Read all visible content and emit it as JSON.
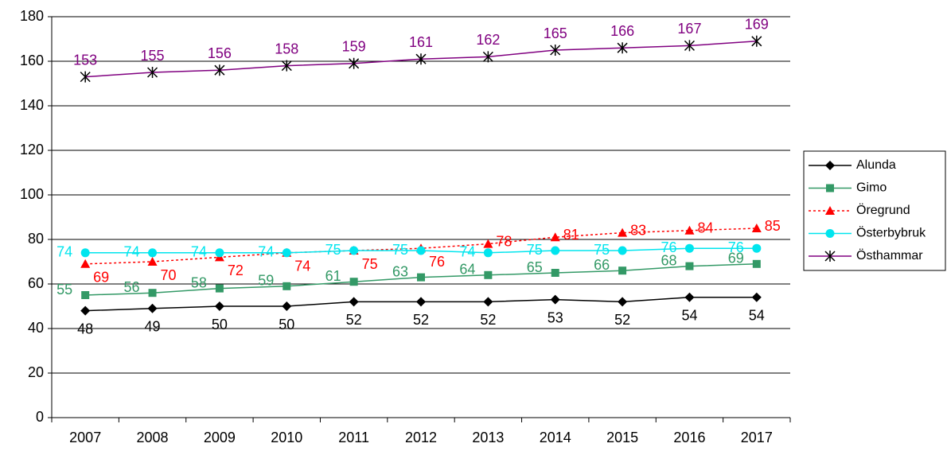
{
  "chart_data": {
    "type": "line",
    "categories": [
      "2007",
      "2008",
      "2009",
      "2010",
      "2011",
      "2012",
      "2013",
      "2014",
      "2015",
      "2016",
      "2017"
    ],
    "series": [
      {
        "name": "Alunda",
        "color": "#000000",
        "marker": "diamond",
        "values": [
          48,
          49,
          50,
          50,
          52,
          52,
          52,
          53,
          52,
          54,
          54
        ]
      },
      {
        "name": "Gimo",
        "color": "#339966",
        "marker": "square",
        "values": [
          55,
          56,
          58,
          59,
          61,
          63,
          64,
          65,
          66,
          68,
          69
        ]
      },
      {
        "name": "Öregrund",
        "color": "#ff0000",
        "marker": "triangle",
        "dashed": true,
        "values": [
          69,
          70,
          72,
          74,
          75,
          76,
          78,
          81,
          83,
          84,
          85
        ]
      },
      {
        "name": "Österbybruk",
        "color": "#00e5ee",
        "marker": "circle",
        "values": [
          74,
          74,
          74,
          74,
          75,
          75,
          74,
          75,
          75,
          76,
          76
        ]
      },
      {
        "name": "Östhammar",
        "color": "#800080",
        "marker": "star",
        "values": [
          153,
          155,
          156,
          158,
          159,
          161,
          162,
          165,
          166,
          167,
          169
        ]
      }
    ],
    "ylim": [
      0,
      180
    ],
    "yticks": [
      0,
      20,
      40,
      60,
      80,
      100,
      120,
      140,
      160,
      180
    ],
    "grid": true,
    "legend": "right"
  }
}
